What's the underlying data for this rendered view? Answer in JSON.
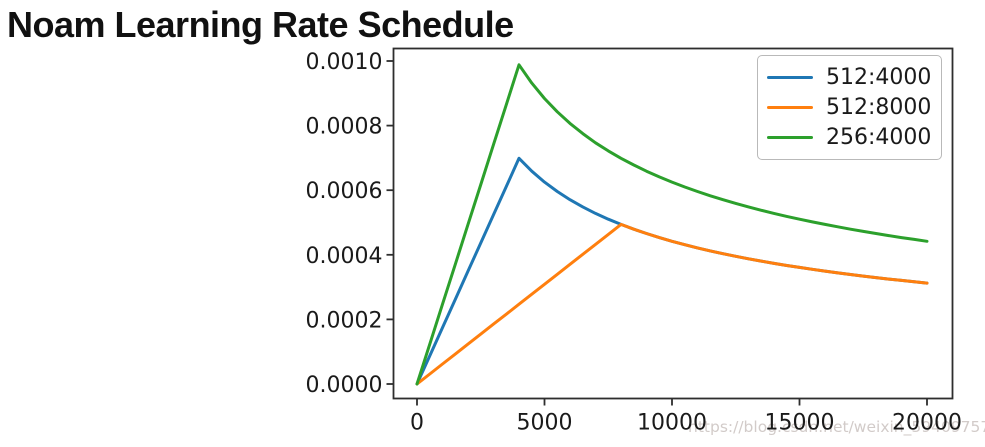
{
  "page": {
    "title": "Noam Learning Rate Schedule",
    "watermark": "https://blog.csdn.net/weixin_59409757",
    "background_color": "#ffffff"
  },
  "chart_data": {
    "type": "line",
    "title": "Noam Learning Rate Schedule",
    "xlabel": "",
    "ylabel": "",
    "grid": false,
    "legend_position": "upper right",
    "xlim": [
      0,
      20000
    ],
    "ylim": [
      0,
      0.001
    ],
    "x_ticks": [
      0,
      5000,
      10000,
      15000,
      20000
    ],
    "y_ticks": [
      "0.0000",
      "0.0002",
      "0.0004",
      "0.0006",
      "0.0008",
      "0.0010"
    ],
    "axis_color": "#2e2e2e",
    "tick_label_color": "#1a1a1a",
    "x": [
      0,
      500,
      1000,
      1500,
      2000,
      2500,
      3000,
      3500,
      4000,
      4500,
      5000,
      5500,
      6000,
      6500,
      7000,
      7500,
      8000,
      8500,
      9000,
      9500,
      10000,
      10500,
      11000,
      11500,
      12000,
      12500,
      13000,
      13500,
      14000,
      14500,
      15000,
      15500,
      16000,
      16500,
      17000,
      17500,
      18000,
      18500,
      19000,
      19500,
      20000
    ],
    "series": [
      {
        "name": "512:4000",
        "color": "#1f77b4",
        "values": [
          0,
          8.73e-05,
          0.0001747,
          0.000262,
          0.0003494,
          0.0004367,
          0.0005241,
          0.0006114,
          0.0006988,
          0.0006588,
          0.000625,
          0.0005959,
          0.0005706,
          0.0005482,
          0.0005283,
          0.0005103,
          0.0004941,
          0.0004794,
          0.0004659,
          0.0004534,
          0.0004419,
          0.0004313,
          0.0004214,
          0.0004121,
          0.0004034,
          0.0003953,
          0.0003876,
          0.0003804,
          0.0003735,
          0.000367,
          0.0003609,
          0.000355,
          0.0003494,
          0.0003441,
          0.000339,
          0.0003341,
          0.0003294,
          0.0003249,
          0.0003206,
          0.0003165,
          0.0003125
        ]
      },
      {
        "name": "512:8000",
        "color": "#ff7f0e",
        "values": [
          0,
          3.09e-05,
          6.18e-05,
          9.26e-05,
          0.0001235,
          0.0001544,
          0.0001853,
          0.0002162,
          0.0002471,
          0.0002779,
          0.0003088,
          0.0003397,
          0.0003706,
          0.0004015,
          0.0004323,
          0.0004632,
          0.0004941,
          0.0004794,
          0.0004659,
          0.0004534,
          0.0004419,
          0.0004313,
          0.0004214,
          0.0004121,
          0.0004034,
          0.0003953,
          0.0003876,
          0.0003804,
          0.0003735,
          0.000367,
          0.0003609,
          0.000355,
          0.0003494,
          0.0003441,
          0.000339,
          0.0003341,
          0.0003294,
          0.0003249,
          0.0003206,
          0.0003165,
          0.0003125
        ]
      },
      {
        "name": "256:4000",
        "color": "#2ca02c",
        "values": [
          0,
          0.0001235,
          0.0002471,
          0.0003706,
          0.0004941,
          0.0006176,
          0.0007412,
          0.0008647,
          0.0009882,
          0.0009317,
          0.0008839,
          0.0008427,
          0.0008069,
          0.0007752,
          0.0007469,
          0.0007217,
          0.0006988,
          0.0006779,
          0.0006588,
          0.0006412,
          0.000625,
          0.0006099,
          0.0005959,
          0.0005828,
          0.0005705,
          0.000559,
          0.0005482,
          0.0005379,
          0.0005283,
          0.000519,
          0.0005103,
          0.000502,
          0.0004941,
          0.0004866,
          0.0004794,
          0.0004725,
          0.0004659,
          0.0004595,
          0.0004534,
          0.0004476,
          0.0004419
        ]
      }
    ]
  }
}
